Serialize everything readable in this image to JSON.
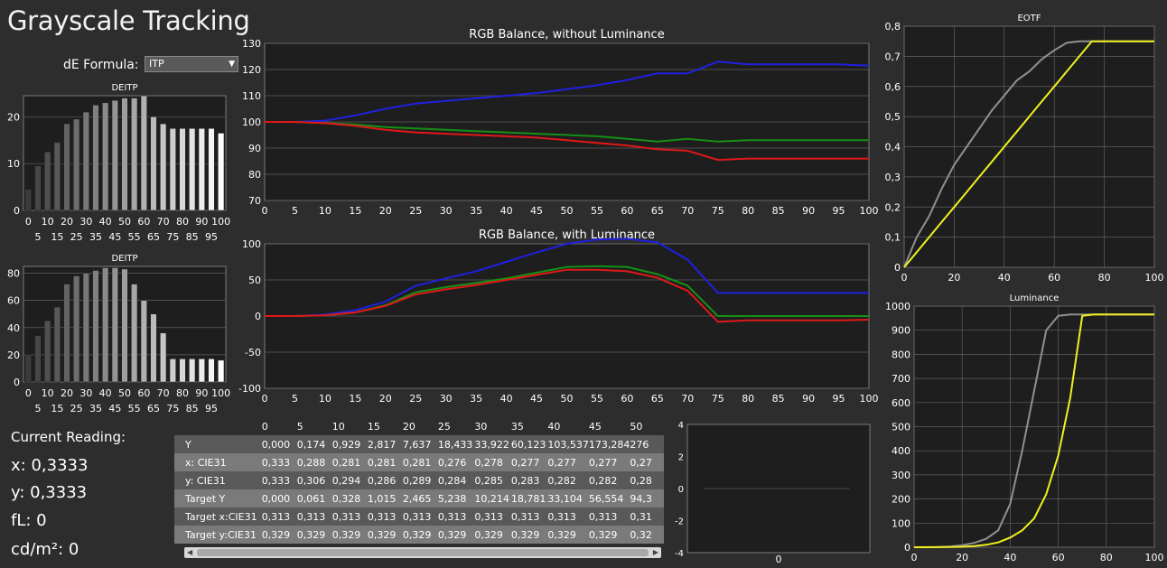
{
  "window": {
    "title": "Grayscale Tracking"
  },
  "formula": {
    "label": "dE Formula:",
    "value": "ITP"
  },
  "colors": {
    "red": "#e01818",
    "green": "#169016",
    "blue": "#2020e0",
    "yellow": "#f0f020",
    "gray": "#909090",
    "panel": "#1e1e1e",
    "grid": "#606060"
  },
  "icons": {
    "dropdown": "chevron-down-icon",
    "scroll_left": "arrow-left-icon",
    "scroll_right": "arrow-right-icon"
  },
  "reading": {
    "title": "Current Reading:",
    "x": "x: 0,3333",
    "y": "y: 0,3333",
    "fl": "fL: 0",
    "cdm2": "cd/m²: 0"
  },
  "chart_data": [
    {
      "id": "deitp1",
      "type": "bar",
      "title": "DEITP",
      "categories": [
        0,
        5,
        10,
        15,
        20,
        25,
        30,
        35,
        40,
        45,
        50,
        55,
        60,
        65,
        70,
        75,
        80,
        85,
        90,
        95,
        100
      ],
      "values": [
        4.5,
        9.5,
        12.5,
        14.5,
        18.5,
        19.5,
        21,
        22.5,
        23,
        23.5,
        24,
        24,
        24.5,
        20,
        18.5,
        17.5,
        17.5,
        17.5,
        17.5,
        17.5,
        16.5
      ],
      "ylim": [
        0,
        24.5
      ],
      "yticks": [
        0,
        10,
        20
      ],
      "xticks_top": [
        "0",
        "10",
        "20",
        "30",
        "40",
        "50",
        "60",
        "70",
        "80",
        "90",
        "100"
      ],
      "xticks_bottom": [
        "5",
        "15",
        "25",
        "35",
        "45",
        "55",
        "65",
        "75",
        "85",
        "95"
      ]
    },
    {
      "id": "deitp2",
      "type": "bar",
      "title": "DEITP",
      "categories": [
        0,
        5,
        10,
        15,
        20,
        25,
        30,
        35,
        40,
        45,
        50,
        55,
        60,
        65,
        70,
        75,
        80,
        85,
        90,
        95,
        100
      ],
      "values": [
        20,
        34,
        45,
        55,
        72,
        78,
        80,
        82,
        84,
        84,
        83,
        72,
        60,
        50,
        36,
        17,
        17,
        17,
        17,
        17,
        16
      ],
      "ylim": [
        0,
        85
      ],
      "yticks": [
        0,
        20,
        40,
        60,
        80
      ],
      "xticks_top": [
        "0",
        "10",
        "20",
        "30",
        "40",
        "50",
        "60",
        "70",
        "80",
        "90",
        "100"
      ],
      "xticks_bottom": [
        "5",
        "15",
        "25",
        "35",
        "45",
        "55",
        "65",
        "75",
        "85",
        "95"
      ]
    },
    {
      "id": "rgb1",
      "type": "line",
      "title": "RGB Balance, without Luminance",
      "x": [
        0,
        5,
        10,
        15,
        20,
        25,
        30,
        35,
        40,
        45,
        50,
        55,
        60,
        65,
        70,
        75,
        80,
        85,
        90,
        95,
        100
      ],
      "series": [
        {
          "color": "blue",
          "values": [
            100,
            100,
            100.5,
            102.5,
            105,
            107,
            108,
            109,
            110,
            111,
            112.5,
            114,
            116,
            118.5,
            118.5,
            123,
            122,
            122,
            122,
            122,
            121.5
          ]
        },
        {
          "color": "green",
          "values": [
            100,
            100,
            99.5,
            99,
            98,
            97.5,
            97,
            96.5,
            96,
            95.5,
            95,
            94.5,
            93.5,
            92.5,
            93.5,
            92.5,
            93,
            93,
            93,
            93,
            93
          ]
        },
        {
          "color": "red",
          "values": [
            100,
            100,
            99.5,
            98.5,
            97,
            96,
            95.5,
            95,
            94.5,
            94,
            93,
            92,
            91,
            89.5,
            89,
            85.5,
            86,
            86,
            86,
            86,
            86
          ]
        }
      ],
      "xlim": [
        0,
        100
      ],
      "ylim": [
        70,
        130
      ],
      "yticks": [
        70,
        80,
        90,
        100,
        110,
        120,
        130
      ],
      "xticks": [
        "0",
        "5",
        "10",
        "15",
        "20",
        "25",
        "30",
        "35",
        "40",
        "45",
        "50",
        "55",
        "60",
        "65",
        "70",
        "75",
        "80",
        "85",
        "90",
        "95",
        "100"
      ]
    },
    {
      "id": "rgb2",
      "type": "line",
      "title": "RGB Balance, with Luminance",
      "x": [
        0,
        5,
        10,
        15,
        20,
        25,
        30,
        35,
        40,
        45,
        50,
        55,
        60,
        65,
        70,
        75,
        80,
        85,
        90,
        95,
        100
      ],
      "series": [
        {
          "color": "blue",
          "values": [
            0,
            0,
            2,
            8,
            20,
            42,
            52,
            62,
            75,
            88,
            100,
            106,
            107,
            102,
            78,
            32,
            32,
            32,
            32,
            32,
            32
          ]
        },
        {
          "color": "green",
          "values": [
            0,
            0,
            1,
            5,
            15,
            33,
            40,
            46,
            52,
            60,
            68,
            69,
            68,
            58,
            42,
            0,
            0,
            0,
            0,
            0,
            0
          ]
        },
        {
          "color": "red",
          "values": [
            0,
            0,
            1,
            5,
            14,
            30,
            37,
            43,
            50,
            57,
            64,
            64,
            62,
            53,
            35,
            -8,
            -6,
            -6,
            -6,
            -6,
            -5
          ]
        }
      ],
      "xlim": [
        0,
        100
      ],
      "ylim": [
        -100,
        100
      ],
      "yticks": [
        -100,
        -50,
        0,
        50,
        100
      ],
      "xticks": [
        "0",
        "5",
        "10",
        "15",
        "20",
        "25",
        "30",
        "35",
        "40",
        "45",
        "50",
        "55",
        "60",
        "65",
        "70",
        "75",
        "80",
        "85",
        "90",
        "95",
        "100"
      ]
    },
    {
      "id": "eotf",
      "type": "line",
      "title": "EOTF",
      "x": [
        0,
        5,
        10,
        15,
        20,
        25,
        30,
        35,
        40,
        45,
        50,
        55,
        60,
        65,
        70,
        75,
        80,
        85,
        90,
        95,
        100
      ],
      "series": [
        {
          "color": "gray",
          "values": [
            0,
            0.1,
            0.17,
            0.26,
            0.34,
            0.4,
            0.46,
            0.52,
            0.57,
            0.62,
            0.65,
            0.69,
            0.72,
            0.745,
            0.75,
            0.75,
            0.75,
            0.75,
            0.75,
            0.75,
            0.75
          ]
        },
        {
          "color": "yellow",
          "values": [
            0,
            0.05,
            0.1,
            0.15,
            0.2,
            0.25,
            0.3,
            0.35,
            0.4,
            0.45,
            0.5,
            0.55,
            0.6,
            0.65,
            0.7,
            0.75,
            0.75,
            0.75,
            0.75,
            0.75,
            0.75
          ]
        }
      ],
      "xlim": [
        0,
        100
      ],
      "ylim": [
        0,
        0.8
      ],
      "yticks": [
        "0",
        "0,1",
        "0,2",
        "0,3",
        "0,4",
        "0,5",
        "0,6",
        "0,7",
        "0,8"
      ],
      "xticks": [
        "0",
        "20",
        "40",
        "60",
        "80",
        "100"
      ]
    },
    {
      "id": "lum",
      "type": "line",
      "title": "Luminance",
      "x": [
        0,
        5,
        10,
        15,
        20,
        25,
        30,
        35,
        40,
        45,
        50,
        55,
        60,
        65,
        70,
        75,
        80,
        85,
        90,
        95,
        100
      ],
      "series": [
        {
          "color": "gray",
          "values": [
            0,
            0.2,
            1,
            3,
            8,
            18,
            35,
            70,
            180,
            400,
            650,
            900,
            960,
            965,
            965,
            965,
            965,
            965,
            965,
            965,
            965
          ]
        },
        {
          "color": "yellow",
          "values": [
            0,
            0.1,
            0.3,
            1,
            2,
            5,
            10,
            20,
            40,
            70,
            120,
            220,
            380,
            620,
            960,
            965,
            965,
            965,
            965,
            965,
            965
          ]
        }
      ],
      "xlim": [
        0,
        100
      ],
      "ylim": [
        0,
        1000
      ],
      "yticks": [
        0,
        100,
        200,
        300,
        400,
        500,
        600,
        700,
        800,
        900,
        1000
      ],
      "xticks": [
        "0",
        "20",
        "40",
        "60",
        "80",
        "100"
      ]
    },
    {
      "id": "small",
      "type": "line",
      "title": "",
      "x": [
        0
      ],
      "series": [
        {
          "color": "gray",
          "values": [
            0
          ]
        }
      ],
      "ylim": [
        -4,
        4
      ],
      "yticks": [
        "-4",
        "-2",
        "0",
        "2",
        "4"
      ],
      "xticks": [
        "0"
      ]
    }
  ],
  "table": {
    "columns": [
      "",
      "0",
      "5",
      "10",
      "15",
      "20",
      "25",
      "30",
      "35",
      "40",
      "45",
      "50"
    ],
    "rows": [
      [
        "Y",
        "0,000",
        "0,174",
        "0,929",
        "2,817",
        "7,637",
        "18,433",
        "33,922",
        "60,123",
        "103,537",
        "173,284",
        "276"
      ],
      [
        "x: CIE31",
        "0,333",
        "0,288",
        "0,281",
        "0,281",
        "0,281",
        "0,276",
        "0,278",
        "0,277",
        "0,277",
        "0,277",
        "0,27"
      ],
      [
        "y: CIE31",
        "0,333",
        "0,306",
        "0,294",
        "0,286",
        "0,289",
        "0,284",
        "0,285",
        "0,283",
        "0,282",
        "0,282",
        "0,28"
      ],
      [
        "Target Y",
        "0,000",
        "0,061",
        "0,328",
        "1,015",
        "2,465",
        "5,238",
        "10,214",
        "18,781",
        "33,104",
        "56,554",
        "94,3"
      ],
      [
        "Target x:CIE31",
        "0,313",
        "0,313",
        "0,313",
        "0,313",
        "0,313",
        "0,313",
        "0,313",
        "0,313",
        "0,313",
        "0,313",
        "0,31"
      ],
      [
        "Target y:CIE31",
        "0,329",
        "0,329",
        "0,329",
        "0,329",
        "0,329",
        "0,329",
        "0,329",
        "0,329",
        "0,329",
        "0,329",
        "0,32"
      ]
    ]
  }
}
